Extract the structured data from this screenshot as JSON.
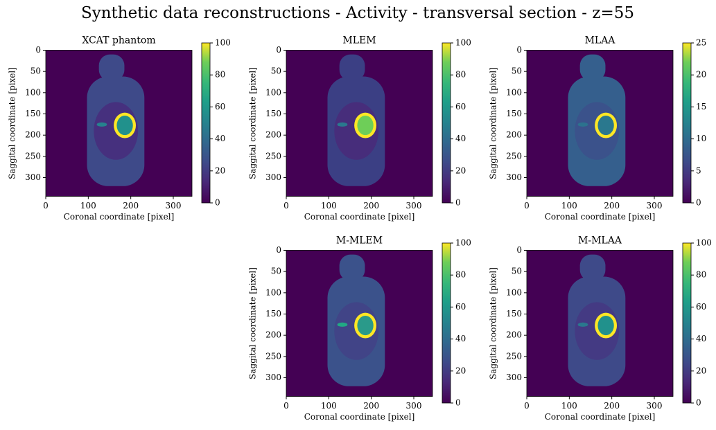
{
  "title": "Synthetic data reconstructions - Activity - transversal section - z=55",
  "chart_data": [
    {
      "type": "heatmap",
      "title": "XCAT phantom",
      "xlabel": "Coronal coordinate [pixel]",
      "ylabel": "Saggital coordinate [pixel]",
      "xlim": [
        0,
        344
      ],
      "ylim": [
        344,
        0
      ],
      "xticks": [
        0,
        100,
        200,
        300
      ],
      "yticks": [
        0,
        50,
        100,
        150,
        200,
        250,
        300
      ],
      "colormap": "viridis",
      "clim": [
        0,
        100
      ],
      "cticks": [
        0,
        20,
        40,
        60,
        80,
        100
      ]
    },
    {
      "type": "heatmap",
      "title": "MLEM",
      "xlabel": "Coronal coordinate [pixel]",
      "ylabel": "Saggital coordinate [pixel]",
      "xlim": [
        0,
        344
      ],
      "ylim": [
        344,
        0
      ],
      "xticks": [
        0,
        100,
        200,
        300
      ],
      "yticks": [
        0,
        50,
        100,
        150,
        200,
        250,
        300
      ],
      "colormap": "viridis",
      "clim": [
        0,
        100
      ],
      "cticks": [
        0,
        20,
        40,
        60,
        80,
        100
      ]
    },
    {
      "type": "heatmap",
      "title": "MLAA",
      "xlabel": "Coronal coordinate [pixel]",
      "ylabel": "Saggital coordinate [pixel]",
      "xlim": [
        0,
        344
      ],
      "ylim": [
        344,
        0
      ],
      "xticks": [
        0,
        100,
        200,
        300
      ],
      "yticks": [
        0,
        50,
        100,
        150,
        200,
        250,
        300
      ],
      "colormap": "viridis",
      "clim": [
        0,
        25
      ],
      "cticks": [
        0,
        5,
        10,
        15,
        20,
        25
      ]
    },
    {
      "type": "heatmap",
      "title": "M-MLEM",
      "xlabel": "Coronal coordinate [pixel]",
      "ylabel": "Saggital coordinate [pixel]",
      "xlim": [
        0,
        344
      ],
      "ylim": [
        344,
        0
      ],
      "xticks": [
        0,
        100,
        200,
        300
      ],
      "yticks": [
        0,
        50,
        100,
        150,
        200,
        250,
        300
      ],
      "colormap": "viridis",
      "clim": [
        0,
        100
      ],
      "cticks": [
        0,
        20,
        40,
        60,
        80,
        100
      ]
    },
    {
      "type": "heatmap",
      "title": "M-MLAA",
      "xlabel": "Coronal coordinate [pixel]",
      "ylabel": "Saggital coordinate [pixel]",
      "xlim": [
        0,
        344
      ],
      "ylim": [
        344,
        0
      ],
      "xticks": [
        0,
        100,
        200,
        300
      ],
      "yticks": [
        0,
        50,
        100,
        150,
        200,
        250,
        300
      ],
      "colormap": "viridis",
      "clim": [
        0,
        100
      ],
      "cticks": [
        0,
        20,
        40,
        60,
        80,
        100
      ]
    }
  ]
}
